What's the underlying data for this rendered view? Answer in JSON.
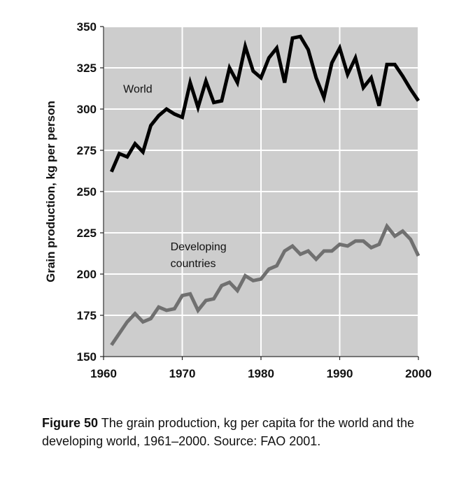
{
  "chart_data": {
    "type": "line",
    "ylabel": "Grain production, kg per person",
    "xlabel": "",
    "xlim": [
      1960,
      2000
    ],
    "ylim": [
      150,
      350
    ],
    "xticks": [
      "1960",
      "1970",
      "1980",
      "1990",
      "2000"
    ],
    "yticks": [
      "150",
      "175",
      "200",
      "225",
      "250",
      "275",
      "300",
      "325",
      "350"
    ],
    "grid": true,
    "series": [
      {
        "name": "World",
        "label_lines": [
          "World"
        ],
        "color": "#000000",
        "x": [
          1961,
          1962,
          1963,
          1964,
          1965,
          1966,
          1967,
          1968,
          1969,
          1970,
          1971,
          1972,
          1973,
          1974,
          1975,
          1976,
          1977,
          1978,
          1979,
          1980,
          1981,
          1982,
          1983,
          1984,
          1985,
          1986,
          1987,
          1988,
          1989,
          1990,
          1991,
          1992,
          1993,
          1994,
          1995,
          1996,
          1997,
          1998,
          1999,
          2000
        ],
        "values": [
          262,
          273,
          271,
          279,
          274,
          290,
          296,
          300,
          297,
          295,
          316,
          301,
          317,
          304,
          305,
          325,
          316,
          338,
          323,
          319,
          331,
          337,
          316,
          343,
          344,
          336,
          319,
          307,
          328,
          337,
          321,
          331,
          313,
          319,
          302,
          327,
          327,
          320,
          312,
          305
        ]
      },
      {
        "name": "Developing countries",
        "label_lines": [
          "Developing",
          "countries"
        ],
        "color": "#707070",
        "x": [
          1961,
          1962,
          1963,
          1964,
          1965,
          1966,
          1967,
          1968,
          1969,
          1970,
          1971,
          1972,
          1973,
          1974,
          1975,
          1976,
          1977,
          1978,
          1979,
          1980,
          1981,
          1982,
          1983,
          1984,
          1985,
          1986,
          1987,
          1988,
          1989,
          1990,
          1991,
          1992,
          1993,
          1994,
          1995,
          1996,
          1997,
          1998,
          1999,
          2000
        ],
        "values": [
          157,
          164,
          171,
          176,
          171,
          173,
          180,
          178,
          179,
          187,
          188,
          178,
          184,
          185,
          193,
          195,
          190,
          199,
          196,
          197,
          203,
          205,
          214,
          217,
          212,
          214,
          209,
          214,
          214,
          218,
          217,
          220,
          220,
          216,
          218,
          229,
          223,
          226,
          221,
          211
        ]
      }
    ]
  },
  "caption": {
    "figure_number": "Figure 50",
    "text": " The grain production, kg per capita for the world and the developing world, 1961–2000. Source: FAO 2001."
  }
}
